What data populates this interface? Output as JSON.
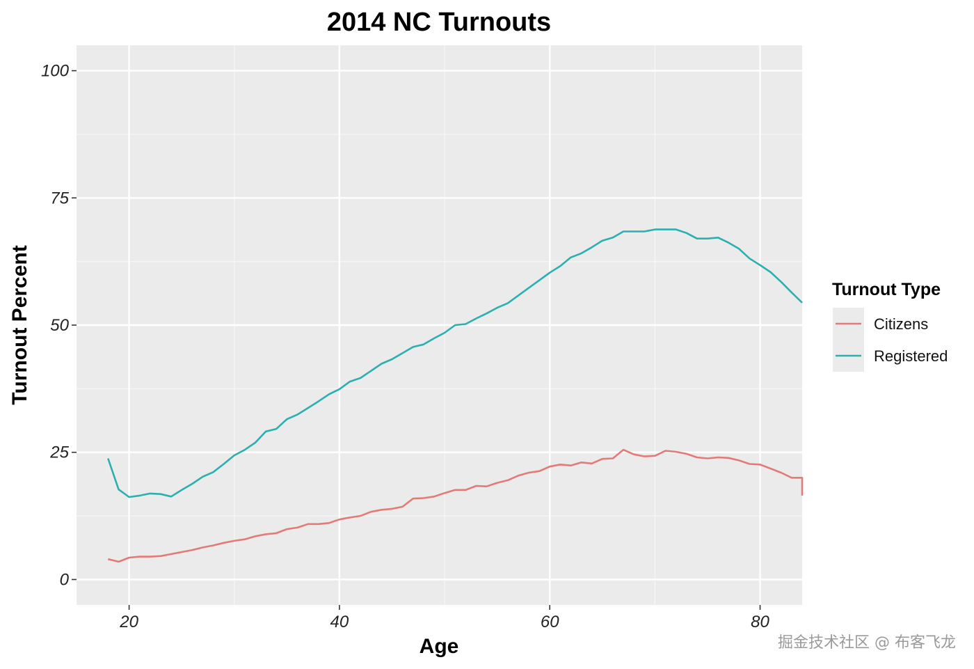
{
  "chart_data": {
    "type": "line",
    "title": "2014 NC Turnouts",
    "xlabel": "Age",
    "ylabel": "Turnout Percent",
    "xlim": [
      15,
      84
    ],
    "ylim": [
      -5,
      105
    ],
    "xticks": [
      20,
      40,
      60,
      80
    ],
    "yticks": [
      0,
      25,
      50,
      75,
      100
    ],
    "grid": true,
    "legend": {
      "title": "Turnout Type",
      "position": "right"
    },
    "series": [
      {
        "name": "Citizens",
        "color": "#E27A78",
        "x": [
          18,
          19,
          20,
          21,
          22,
          23,
          24,
          25,
          26,
          27,
          28,
          29,
          30,
          31,
          32,
          33,
          34,
          35,
          36,
          37,
          38,
          39,
          40,
          41,
          42,
          43,
          44,
          45,
          46,
          47,
          48,
          49,
          50,
          51,
          52,
          53,
          54,
          55,
          56,
          57,
          58,
          59,
          60,
          61,
          62,
          63,
          64,
          65,
          66,
          67,
          68,
          69,
          70,
          71,
          72,
          73,
          74,
          75,
          76,
          77,
          78,
          79,
          80,
          81,
          82,
          83,
          84,
          84
        ],
        "values": [
          4.0,
          3.5,
          4.3,
          4.5,
          4.5,
          4.6,
          5.0,
          5.4,
          5.8,
          6.3,
          6.7,
          7.2,
          7.6,
          7.9,
          8.5,
          8.9,
          9.1,
          9.9,
          10.2,
          10.9,
          10.9,
          11.1,
          11.8,
          12.2,
          12.5,
          13.3,
          13.7,
          13.9,
          14.3,
          15.9,
          16.0,
          16.3,
          17.0,
          17.6,
          17.6,
          18.4,
          18.3,
          19.0,
          19.5,
          20.4,
          21.0,
          21.3,
          22.2,
          22.6,
          22.4,
          23.0,
          22.8,
          23.7,
          23.8,
          25.5,
          24.6,
          24.2,
          24.3,
          25.3,
          25.1,
          24.7,
          24.0,
          23.8,
          24.0,
          23.9,
          23.4,
          22.7,
          22.6,
          21.8,
          21.0,
          20.0,
          20.0,
          16.5
        ]
      },
      {
        "name": "Registered",
        "color": "#2BAFAF",
        "x": [
          18,
          19,
          20,
          21,
          22,
          23,
          24,
          25,
          26,
          27,
          28,
          29,
          30,
          31,
          32,
          33,
          34,
          35,
          36,
          37,
          38,
          39,
          40,
          41,
          42,
          43,
          44,
          45,
          46,
          47,
          48,
          49,
          50,
          51,
          52,
          53,
          54,
          55,
          56,
          57,
          58,
          59,
          60,
          61,
          62,
          63,
          64,
          65,
          66,
          67,
          68,
          69,
          70,
          71,
          72,
          73,
          74,
          75,
          76,
          77,
          78,
          79,
          80,
          81,
          82,
          83,
          84
        ],
        "values": [
          23.8,
          17.7,
          16.2,
          16.5,
          16.9,
          16.8,
          16.3,
          17.6,
          18.8,
          20.2,
          21.1,
          22.7,
          24.4,
          25.5,
          26.9,
          29.1,
          29.6,
          31.5,
          32.4,
          33.7,
          35.0,
          36.4,
          37.4,
          38.9,
          39.6,
          41.0,
          42.4,
          43.3,
          44.5,
          45.7,
          46.2,
          47.4,
          48.5,
          50.0,
          50.2,
          51.3,
          52.3,
          53.4,
          54.3,
          55.8,
          57.3,
          58.8,
          60.3,
          61.6,
          63.3,
          64.1,
          65.3,
          66.6,
          67.2,
          68.4,
          68.4,
          68.4,
          68.8,
          68.8,
          68.8,
          68.1,
          67.0,
          67.0,
          67.2,
          66.2,
          65.0,
          63.1,
          61.8,
          60.4,
          58.5,
          56.4,
          54.4
        ]
      }
    ]
  },
  "watermark": "掘金技术社区 @ 布客飞龙"
}
